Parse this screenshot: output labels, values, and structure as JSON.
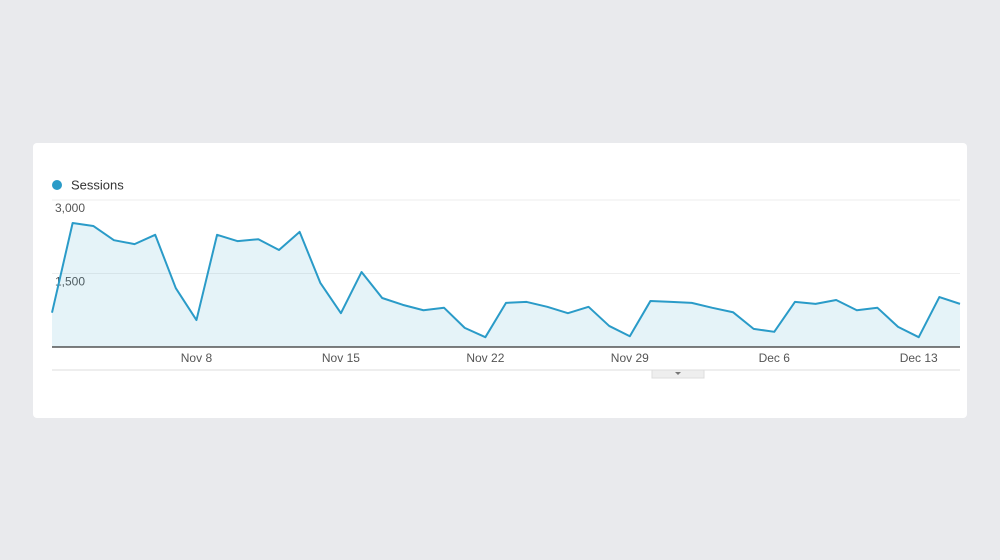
{
  "chart_data": {
    "type": "line",
    "categories": [
      null,
      null,
      null,
      null,
      null,
      null,
      null,
      "Nov 8",
      null,
      null,
      null,
      null,
      null,
      null,
      "Nov 15",
      null,
      null,
      null,
      null,
      null,
      null,
      "Nov 22",
      null,
      null,
      null,
      null,
      null,
      null,
      "Nov 29",
      null,
      null,
      null,
      null,
      null,
      null,
      "Dec 6",
      null,
      null,
      null,
      null,
      null,
      null,
      "Dec 13",
      null,
      null
    ],
    "series": [
      {
        "name": "Sessions",
        "color": "#2a9bc8",
        "values": [
          700,
          2530,
          2470,
          2180,
          2100,
          2290,
          1200,
          550,
          2290,
          2160,
          2200,
          1980,
          2350,
          1310,
          690,
          1530,
          1000,
          860,
          750,
          800,
          390,
          200,
          900,
          920,
          820,
          690,
          820,
          430,
          220,
          940,
          920,
          900,
          800,
          710,
          370,
          310,
          920,
          880,
          960,
          750,
          800,
          410,
          200,
          1020,
          880
        ]
      }
    ],
    "ylim": [
      0,
      3000
    ],
    "yticks": [
      {
        "value": 1500,
        "label": "1,500"
      },
      {
        "value": 3000,
        "label": "3,000"
      }
    ],
    "grid": true
  }
}
